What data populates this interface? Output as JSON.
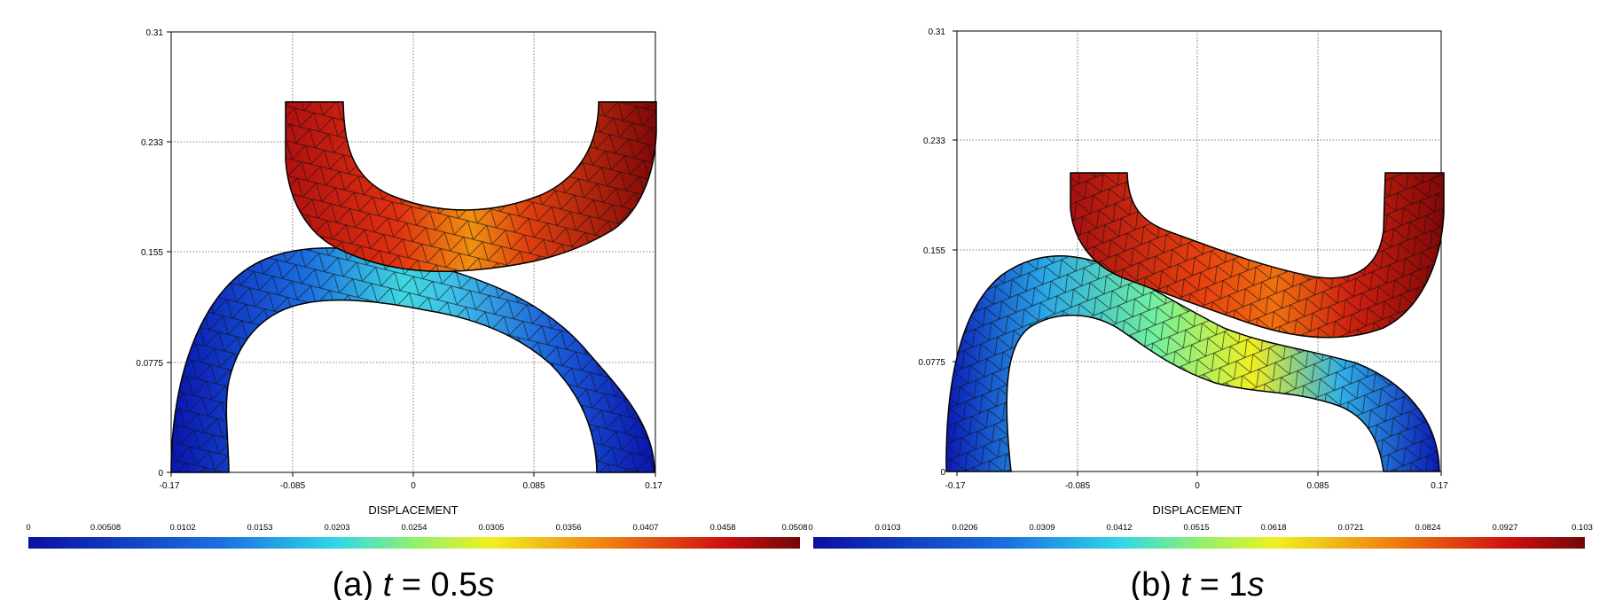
{
  "panels": [
    {
      "id": "a",
      "y_ticks": [
        "0.31",
        "0.233",
        "0.155",
        "0.0775",
        "0"
      ],
      "x_ticks": [
        "-0.17",
        "-0.085",
        "0",
        "0.085",
        "0.17"
      ],
      "xlabel": "DISPLACEMENT",
      "colorbar_ticks": [
        "0",
        "0.00508",
        "0.0102",
        "0.0153",
        "0.0203",
        "0.0254",
        "0.0305",
        "0.0356",
        "0.0407",
        "0.0458",
        "0.0508"
      ],
      "caption_prefix": "(a) ",
      "caption_var": "t",
      "caption_eq": " = 0.5",
      "caption_unit": "s"
    },
    {
      "id": "b",
      "y_ticks": [
        "0.31",
        "0.233",
        "0.155",
        "0.0775",
        "0"
      ],
      "x_ticks": [
        "-0.17",
        "-0.085",
        "0",
        "0.085",
        "0.17"
      ],
      "xlabel": "DISPLACEMENT",
      "colorbar_ticks": [
        "0",
        "0.0103",
        "0.0206",
        "0.0309",
        "0.0412",
        "0.0515",
        "0.0618",
        "0.0721",
        "0.0824",
        "0.0927",
        "0.103"
      ],
      "caption_prefix": "(b) ",
      "caption_var": "t",
      "caption_eq": " = 1",
      "caption_unit": "s"
    }
  ],
  "colors": {
    "scale_low": "#0a10a0",
    "scale_mid_low": "#2fb8e6",
    "scale_mid": "#e8f020",
    "scale_mid_high": "#f07010",
    "scale_high": "#7a0a0a",
    "mesh": "#1a1a1a",
    "grid": "#555555"
  }
}
